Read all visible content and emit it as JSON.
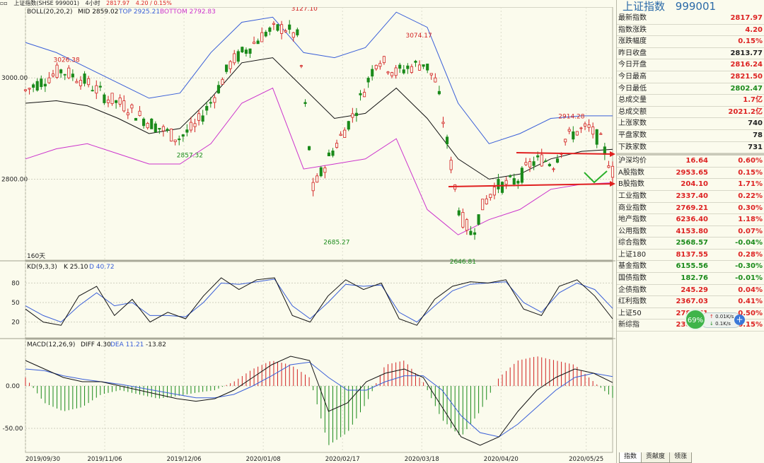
{
  "topbar": {
    "icon": "window-icon",
    "name": "上证指数(SHSE 999001)",
    "period": "4小时",
    "price": "2817.97",
    "change": "4.20 / 0.15%"
  },
  "colors": {
    "up": "#d22222",
    "down": "#1a8a1a",
    "upper_band": "#3a5fd8",
    "lower_band": "#cc33cc",
    "mid": "#111111"
  },
  "price_panel": {
    "legend_name": "BOLL(20,20,2)",
    "legend_mid": "MID 2859.02",
    "legend_top": "TOP 2925.21",
    "legend_bottom": "BOTTOM 2792.83",
    "ytick_labels": [
      "3000.00",
      "2800.00"
    ],
    "period_label": "160天",
    "annotations": [
      "3026.38",
      "2857.32",
      "3127.10",
      "2685.27",
      "3074.17",
      "2646.81",
      "2914.28"
    ]
  },
  "kd_panel": {
    "legend_name": "KD(9,3,3)",
    "legend_k": "K 25.10",
    "legend_d": "D 40.72",
    "ytick_labels": [
      "80",
      "50",
      "20"
    ]
  },
  "macd_panel": {
    "legend_name": "MACD(12,26,9)",
    "legend_diff": "DIFF 4.30",
    "legend_dea": "DEA 11.21",
    "legend_macd": "-13.82",
    "ytick_labels": [
      "0.00",
      "-50.00"
    ]
  },
  "x_axis_labels": [
    "2019/09/30",
    "2019/11/06",
    "2019/12/06",
    "2020/01/08",
    "2020/02/17",
    "2020/03/18",
    "2020/04/20",
    "2020/05/25"
  ],
  "chart_data": [
    {
      "type": "line",
      "subtype": "candlestick with Bollinger bands",
      "x_labels": [
        "2019/09/30",
        "2019/11/06",
        "2019/12/06",
        "2020/01/08",
        "2020/02/17",
        "2020/03/18",
        "2020/04/20",
        "2020/05/25"
      ],
      "ylim": [
        2640,
        3140
      ],
      "yticks": [
        3000,
        2800
      ],
      "close_path": [
        [
          0,
          2975
        ],
        [
          0.06,
          3015
        ],
        [
          0.1,
          2995
        ],
        [
          0.14,
          2960
        ],
        [
          0.17,
          2945
        ],
        [
          0.2,
          2920
        ],
        [
          0.23,
          2900
        ],
        [
          0.26,
          2880
        ],
        [
          0.29,
          2905
        ],
        [
          0.32,
          2960
        ],
        [
          0.35,
          3030
        ],
        [
          0.38,
          3060
        ],
        [
          0.41,
          3090
        ],
        [
          0.44,
          3100
        ],
        [
          0.465,
          3080
        ],
        [
          0.49,
          2780
        ],
        [
          0.52,
          2850
        ],
        [
          0.56,
          2930
        ],
        [
          0.6,
          3040
        ],
        [
          0.63,
          3010
        ],
        [
          0.65,
          3020
        ],
        [
          0.68,
          3030
        ],
        [
          0.7,
          2990
        ],
        [
          0.72,
          2860
        ],
        [
          0.74,
          2730
        ],
        [
          0.76,
          2690
        ],
        [
          0.78,
          2750
        ],
        [
          0.8,
          2785
        ],
        [
          0.82,
          2790
        ],
        [
          0.84,
          2800
        ],
        [
          0.86,
          2830
        ],
        [
          0.88,
          2840
        ],
        [
          0.9,
          2830
        ],
        [
          0.92,
          2880
        ],
        [
          0.94,
          2895
        ],
        [
          0.96,
          2900
        ],
        [
          0.98,
          2875
        ],
        [
          1.0,
          2815
        ]
      ],
      "series": [
        {
          "name": "MID",
          "values": [
            2950,
            2955,
            2945,
            2920,
            2890,
            2900,
            2960,
            3030,
            3040,
            2980,
            2920,
            2930,
            2980,
            2920,
            2840,
            2800,
            2810,
            2840,
            2855,
            2859
          ]
        },
        {
          "name": "TOP",
          "values": [
            3070,
            3050,
            3020,
            2990,
            2960,
            2970,
            3050,
            3110,
            3120,
            3050,
            3040,
            3060,
            3130,
            3100,
            2950,
            2870,
            2890,
            2920,
            2925,
            2925
          ]
        },
        {
          "name": "BOTTOM",
          "values": [
            2840,
            2860,
            2870,
            2850,
            2830,
            2830,
            2870,
            2950,
            2980,
            2820,
            2830,
            2840,
            2880,
            2740,
            2690,
            2720,
            2740,
            2780,
            2790,
            2793
          ]
        }
      ],
      "annotations": [
        {
          "label": "3026.38",
          "x": 0.07,
          "y": 3026.38
        },
        {
          "label": "2857.32",
          "x": 0.28,
          "y": 2857.32
        },
        {
          "label": "3127.10",
          "x": 0.475,
          "y": 3127.1
        },
        {
          "label": "2685.27",
          "x": 0.53,
          "y": 2685.27
        },
        {
          "label": "3074.17",
          "x": 0.67,
          "y": 3074.17
        },
        {
          "label": "2646.81",
          "x": 0.745,
          "y": 2646.81
        },
        {
          "label": "2914.28",
          "x": 0.93,
          "y": 2914.28
        }
      ]
    },
    {
      "type": "line",
      "title": "KD(9,3,3)",
      "ylim": [
        0,
        100
      ],
      "yticks": [
        80,
        50,
        20
      ],
      "series": [
        {
          "name": "K",
          "values": [
            40,
            20,
            15,
            60,
            75,
            30,
            55,
            20,
            35,
            25,
            60,
            88,
            70,
            85,
            88,
            30,
            20,
            60,
            85,
            70,
            80,
            25,
            15,
            55,
            75,
            82,
            80,
            85,
            40,
            30,
            75,
            85,
            60,
            25
          ]
        },
        {
          "name": "D",
          "values": [
            45,
            30,
            20,
            45,
            65,
            45,
            50,
            30,
            30,
            28,
            50,
            80,
            78,
            82,
            86,
            45,
            25,
            50,
            78,
            75,
            77,
            35,
            20,
            45,
            68,
            78,
            80,
            82,
            50,
            35,
            65,
            80,
            70,
            41
          ]
        }
      ]
    },
    {
      "type": "bar",
      "title": "MACD(12,26,9)",
      "ylim": [
        -75,
        45
      ],
      "yticks": [
        0,
        -50
      ],
      "series": [
        {
          "name": "DIFF",
          "values": [
            30,
            20,
            10,
            5,
            5,
            0,
            -5,
            -10,
            -15,
            -18,
            -15,
            -5,
            10,
            25,
            35,
            30,
            -30,
            -20,
            5,
            15,
            20,
            10,
            -25,
            -60,
            -70,
            -60,
            -30,
            -5,
            10,
            20,
            15,
            4
          ]
        },
        {
          "name": "DEA",
          "values": [
            20,
            18,
            12,
            8,
            5,
            2,
            -2,
            -6,
            -10,
            -14,
            -14,
            -10,
            0,
            12,
            25,
            28,
            10,
            -5,
            -5,
            5,
            12,
            12,
            -5,
            -35,
            -55,
            -60,
            -45,
            -25,
            -5,
            10,
            15,
            11
          ]
        },
        {
          "name": "MACD",
          "values": [
            10,
            -20,
            -30,
            -25,
            -10,
            -5,
            -10,
            -15,
            -12,
            -8,
            -5,
            5,
            20,
            30,
            25,
            10,
            -70,
            -55,
            -20,
            25,
            30,
            5,
            -40,
            -60,
            -30,
            10,
            30,
            35,
            30,
            25,
            5,
            -14
          ]
        }
      ]
    }
  ],
  "quote_panel": {
    "title": "上证指数",
    "code": "999001",
    "rows": [
      {
        "label": "最新指数",
        "value": "2817.97",
        "cls": "up"
      },
      {
        "label": "指数涨跌",
        "value": "4.20",
        "cls": "up"
      },
      {
        "label": "涨跌幅度",
        "value": "0.15%",
        "cls": "up"
      },
      {
        "label": "昨日收盘",
        "value": "2813.77",
        "cls": "neutral"
      },
      {
        "label": "今日开盘",
        "value": "2816.24",
        "cls": "up"
      },
      {
        "label": "今日最高",
        "value": "2821.50",
        "cls": "up"
      },
      {
        "label": "今日最低",
        "value": "2802.47",
        "cls": "down"
      },
      {
        "label": "总成交量",
        "value": "1.7亿",
        "cls": "up"
      },
      {
        "label": "总成交额",
        "value": "2021.2亿",
        "cls": "up"
      },
      {
        "label": "上涨家数",
        "value": "740",
        "cls": "neutral"
      },
      {
        "label": "平盘家数",
        "value": "78",
        "cls": "neutral"
      },
      {
        "label": "下跌家数",
        "value": "731",
        "cls": "neutral"
      }
    ],
    "index_rows": [
      {
        "label": "沪深均价",
        "v1": "16.64",
        "c1": "up",
        "v2": "0.60%",
        "c2": "up"
      },
      {
        "label": "A股指数",
        "v1": "2953.65",
        "c1": "up",
        "v2": "0.15%",
        "c2": "up"
      },
      {
        "label": "B股指数",
        "v1": "204.10",
        "c1": "up",
        "v2": "1.71%",
        "c2": "up"
      },
      {
        "label": "工业指数",
        "v1": "2337.40",
        "c1": "up",
        "v2": "0.22%",
        "c2": "up"
      },
      {
        "label": "商业指数",
        "v1": "2769.21",
        "c1": "up",
        "v2": "0.30%",
        "c2": "up"
      },
      {
        "label": "地产指数",
        "v1": "6236.40",
        "c1": "up",
        "v2": "1.18%",
        "c2": "up"
      },
      {
        "label": "公用指数",
        "v1": "4153.80",
        "c1": "up",
        "v2": "0.07%",
        "c2": "up"
      },
      {
        "label": "综合指数",
        "v1": "2568.57",
        "c1": "down",
        "v2": "-0.04%",
        "c2": "down"
      },
      {
        "label": "上证180",
        "v1": "8137.55",
        "c1": "up",
        "v2": "0.28%",
        "c2": "up"
      },
      {
        "label": "基金指数",
        "v1": "6155.56",
        "c1": "down",
        "v2": "-0.30%",
        "c2": "down"
      },
      {
        "label": "国债指数",
        "v1": "182.76",
        "c1": "down",
        "v2": "-0.01%",
        "c2": "down"
      },
      {
        "label": "企债指数",
        "v1": "245.29",
        "c1": "up",
        "v2": "0.04%",
        "c2": "up"
      },
      {
        "label": "红利指数",
        "v1": "2367.03",
        "c1": "up",
        "v2": "0.41%",
        "c2": "up"
      },
      {
        "label": "上证50",
        "v1": "2789.71",
        "c1": "up",
        "v2": "0.50%",
        "c2": "up"
      },
      {
        "label": "新综指",
        "v1": "2381.61",
        "c1": "up",
        "v2": "0.15%",
        "c2": "up"
      }
    ]
  },
  "network_widget": {
    "percent": "69%",
    "up_speed": "0.01K/s",
    "down_speed": "0.1K/s"
  },
  "tabs": [
    "指数",
    "贡献度",
    "领涨"
  ]
}
